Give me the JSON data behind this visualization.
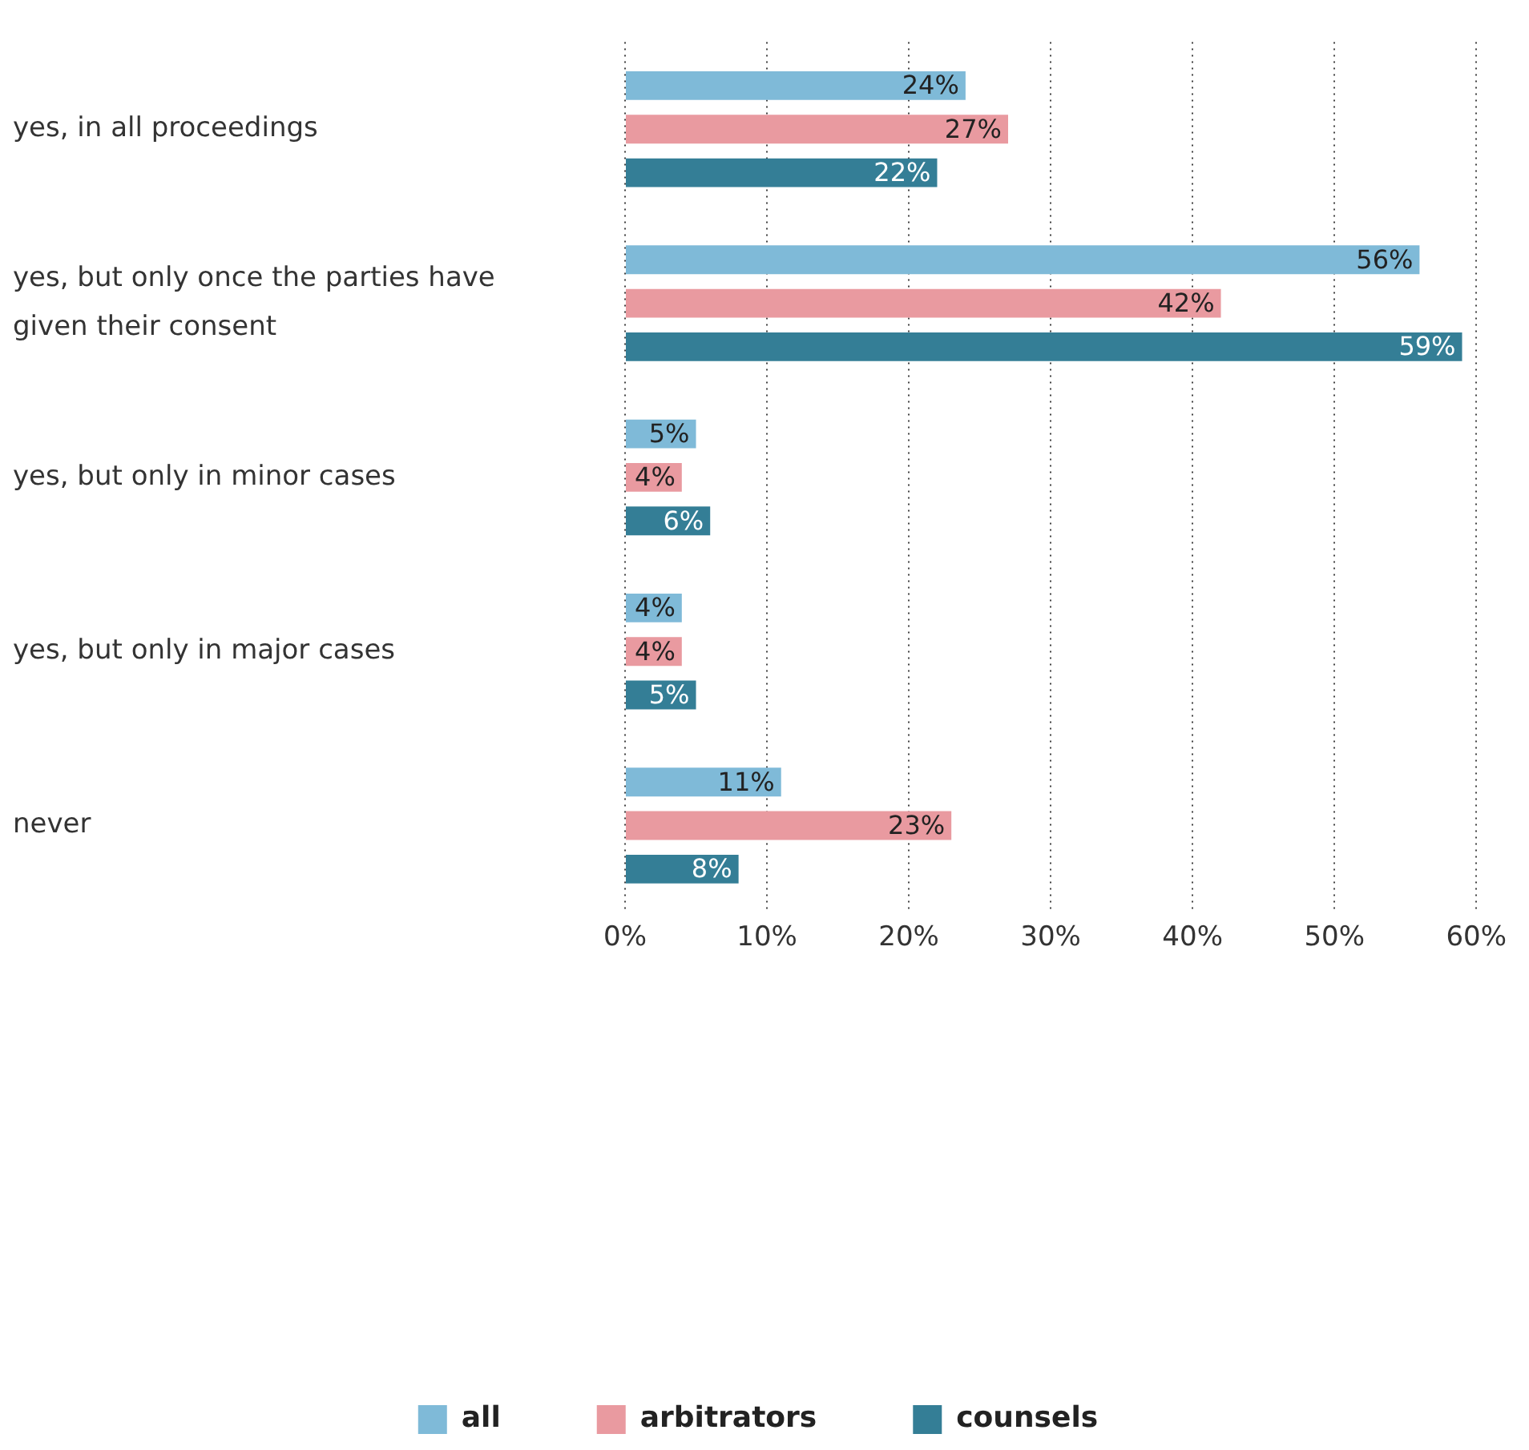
{
  "chart_data": {
    "type": "bar",
    "orientation": "horizontal",
    "categories": [
      "yes, in all proceedings",
      "yes, but only once the parties have given their consent",
      "yes, but only in minor cases",
      "yes, but only in major cases",
      "never"
    ],
    "series": [
      {
        "name": "all",
        "color": "#7fbad8",
        "values": [
          24,
          56,
          5,
          4,
          11
        ],
        "value_labels": [
          "24%",
          "56%",
          "5%",
          "4%",
          "11%"
        ]
      },
      {
        "name": "arbitrators",
        "color": "#e99aa0",
        "values": [
          27,
          42,
          4,
          4,
          23
        ],
        "value_labels": [
          "27%",
          "42%",
          "4%",
          "4%",
          "23%"
        ]
      },
      {
        "name": "counsels",
        "color": "#347e96",
        "values": [
          22,
          59,
          6,
          5,
          8
        ],
        "value_labels": [
          "22%",
          "59%",
          "6%",
          "5%",
          "8%"
        ]
      }
    ],
    "xlim": [
      0,
      60
    ],
    "xticks": [
      {
        "value": 0,
        "label": "0%"
      },
      {
        "value": 10,
        "label": "10%"
      },
      {
        "value": 20,
        "label": "20%"
      },
      {
        "value": 30,
        "label": "30%"
      },
      {
        "value": 40,
        "label": "40%"
      },
      {
        "value": 50,
        "label": "50%"
      },
      {
        "value": 60,
        "label": "60%"
      }
    ],
    "grid": "x",
    "legend": "bottom"
  }
}
